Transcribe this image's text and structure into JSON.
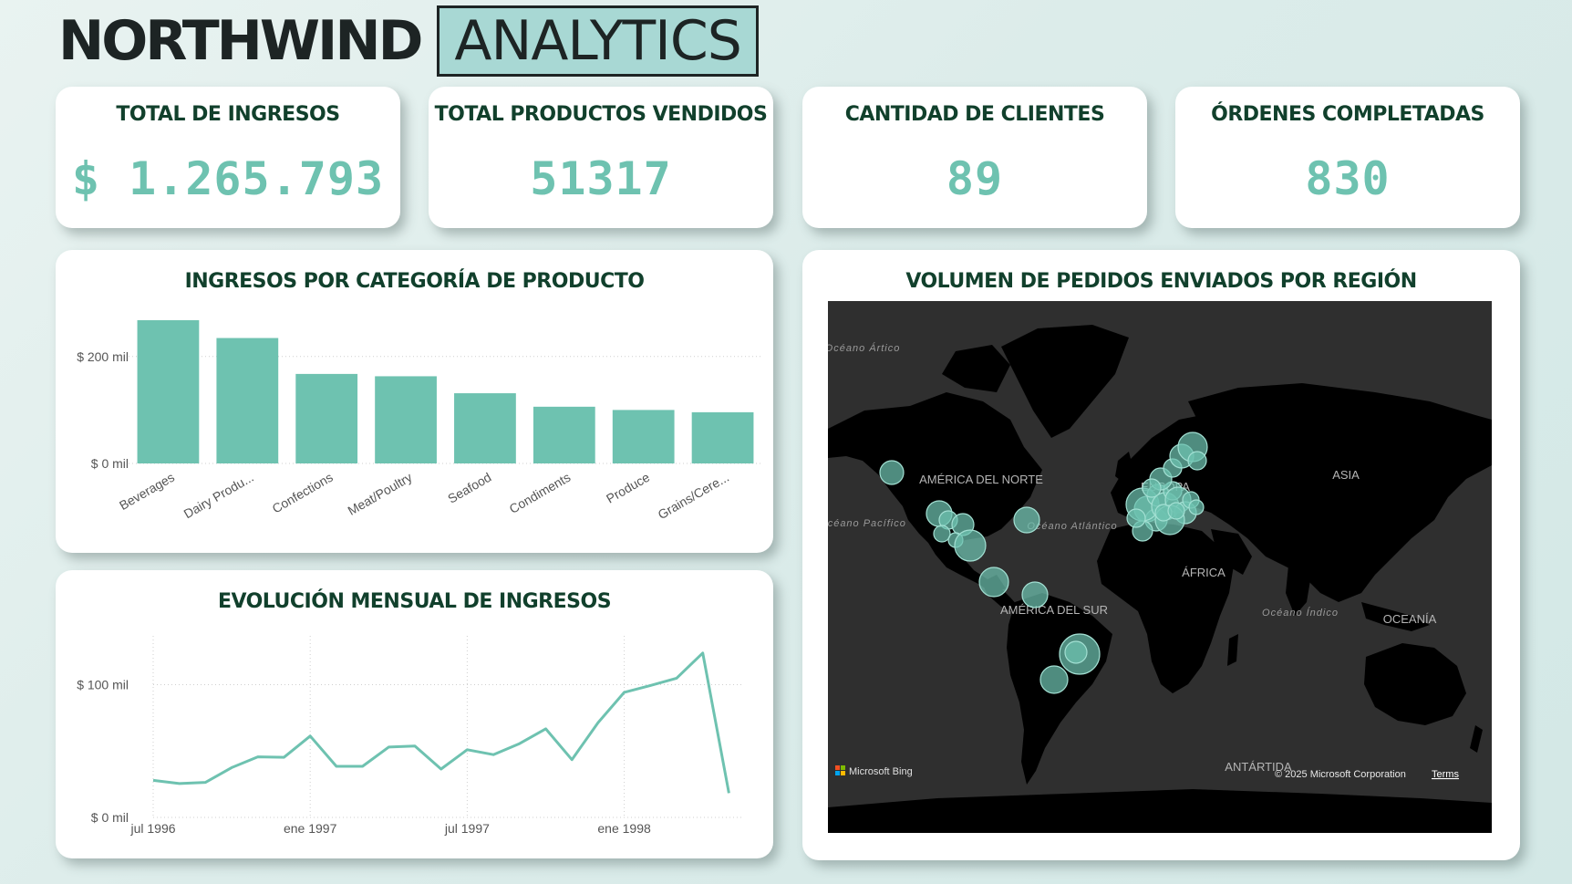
{
  "header": {
    "brand_bold": "NORTHWIND",
    "brand_boxed": "ANALYTICS"
  },
  "kpis": [
    {
      "title": "TOTAL DE INGRESOS",
      "value": "$ 1.265.793"
    },
    {
      "title": "TOTAL PRODUCTOS VENDIDOS",
      "value": "51317"
    },
    {
      "title": "CANTIDAD DE CLIENTES",
      "value": "89"
    },
    {
      "title": "ÓRDENES COMPLETADAS",
      "value": "830"
    }
  ],
  "colors": {
    "accent": "#6ec2b0",
    "title": "#11402c",
    "map_bg": "#2f2f2f",
    "land": "#000000"
  },
  "charts": {
    "bar": {
      "title": "INGRESOS POR CATEGORÍA DE PRODUCTO",
      "chart_data": {
        "type": "bar",
        "categories": [
          "Beverages",
          "Dairy Produ...",
          "Confections",
          "Meat/Poultry",
          "Seafood",
          "Condiments",
          "Produce",
          "Grains/Cere..."
        ],
        "values": [
          267868,
          234507,
          167357,
          163022,
          131261,
          106047,
          99985,
          95744
        ],
        "tick_labels": [
          "$ 0 mil",
          "$ 200 mil"
        ],
        "tick_values": [
          0,
          200000
        ],
        "ylim": [
          0,
          290000
        ],
        "grid": true
      }
    },
    "line": {
      "title": "EVOLUCIÓN MENSUAL DE INGRESOS",
      "chart_data": {
        "type": "line",
        "x": [
          "1996-07",
          "1996-08",
          "1996-09",
          "1996-10",
          "1996-11",
          "1996-12",
          "1997-01",
          "1997-02",
          "1997-03",
          "1997-04",
          "1997-05",
          "1997-06",
          "1997-07",
          "1997-08",
          "1997-09",
          "1997-10",
          "1997-11",
          "1997-12",
          "1998-01",
          "1998-02",
          "1998-03",
          "1998-04",
          "1998-05"
        ],
        "values": [
          27900,
          25500,
          26400,
          37500,
          45600,
          45300,
          61300,
          38500,
          38500,
          53000,
          53800,
          36400,
          51000,
          47300,
          55600,
          66700,
          43500,
          71400,
          94200,
          99400,
          104900,
          123800,
          18300
        ],
        "x_tick_labels": [
          "jul 1996",
          "ene 1997",
          "jul 1997",
          "ene 1998"
        ],
        "x_tick_index": [
          0,
          6,
          12,
          18
        ],
        "y_tick_labels": [
          "$ 0 mil",
          "$ 100 mil"
        ],
        "y_tick_values": [
          0,
          100000
        ],
        "ylim": [
          0,
          145000
        ],
        "grid": true
      }
    }
  },
  "map": {
    "title": "VOLUMEN DE PEDIDOS ENVIADOS POR REGIÓN",
    "labels": {
      "arctic": "Océano Ártico",
      "pacific": "Océano Pacífico",
      "atlantic": "Océano Atlántico",
      "indian": "Océano Índico",
      "north_america": "AMÉRICA DEL NORTE",
      "south_america": "AMÉRICA DEL SUR",
      "europe": "EUROPA",
      "asia": "ASIA",
      "africa": "ÁFRICA",
      "oceania": "OCEANÍA",
      "antarctica": "ANTÁRTIDA"
    },
    "attribution": "© 2025 Microsoft Corporation",
    "terms": "Terms",
    "provider": "Microsoft Bing"
  }
}
